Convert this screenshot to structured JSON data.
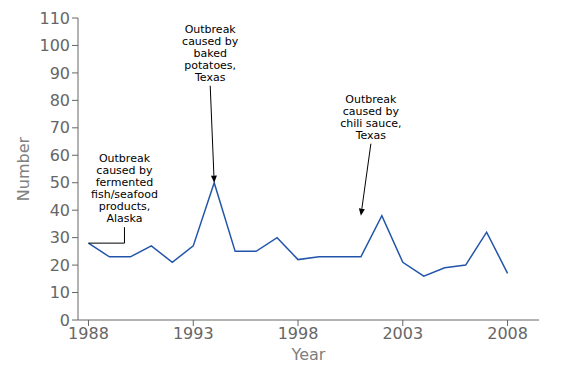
{
  "chart_data": {
    "type": "line",
    "x": [
      1988,
      1989,
      1990,
      1991,
      1992,
      1993,
      1994,
      1995,
      1996,
      1997,
      1998,
      1999,
      2000,
      2001,
      2002,
      2003,
      2004,
      2005,
      2006,
      2007,
      2008
    ],
    "values": [
      28,
      23,
      23,
      27,
      21,
      27,
      50,
      25,
      25,
      30,
      22,
      23,
      23,
      23,
      38,
      21,
      16,
      19,
      20,
      32,
      17
    ],
    "color": "#2255aa",
    "xlabel": "Year",
    "ylabel": "Number",
    "xlim": [
      1987.5,
      2009.5
    ],
    "ylim": [
      0,
      110
    ],
    "xticks": [
      1988,
      1993,
      1998,
      2003,
      2008
    ],
    "yticks": [
      0,
      10,
      20,
      30,
      40,
      50,
      60,
      70,
      80,
      90,
      100,
      110
    ],
    "grid": false,
    "annotations": [
      {
        "text": "Outbreak\ncaused by\nfermented\nfish/seafood\nproducts,\nAlaska",
        "x": 1988,
        "y": 28
      },
      {
        "text": "Outbreak\ncaused by\nbaked\npotatoes,\nTexas",
        "x": 1994,
        "y": 50
      },
      {
        "text": "Outbreak\ncaused by\nchili sauce,\nTexas",
        "x": 2001,
        "y": 38
      }
    ]
  }
}
